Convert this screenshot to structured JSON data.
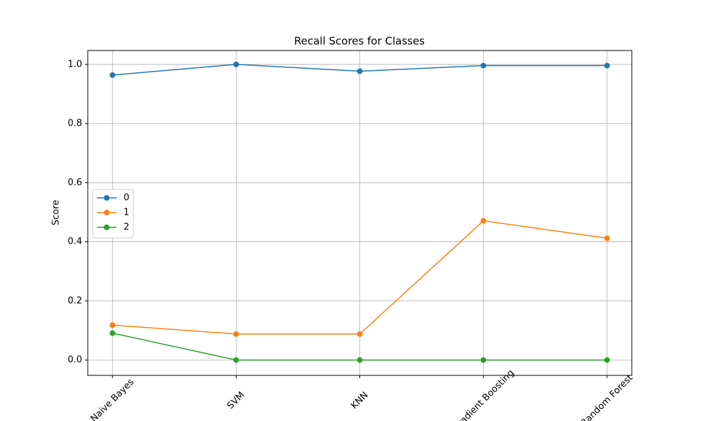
{
  "chart_data": {
    "type": "line",
    "title": "Recall Scores for Classes",
    "y_label": "Score",
    "categories": [
      "Naive Bayes",
      "SVM",
      "KNN",
      "Gradient Boosting",
      "Random Forest"
    ],
    "series": [
      {
        "name": "0",
        "color": "#1f77b4",
        "values": [
          0.964,
          1.0,
          0.977,
          0.996,
          0.996
        ]
      },
      {
        "name": "1",
        "color": "#ff7f0e",
        "values": [
          0.118,
          0.088,
          0.088,
          0.471,
          0.412
        ]
      },
      {
        "name": "2",
        "color": "#2ca02c",
        "values": [
          0.091,
          0,
          0,
          0,
          0
        ]
      }
    ],
    "ylim": [
      -0.052,
      1.047
    ],
    "yticks": [
      {
        "value": 0,
        "label": "0.0"
      },
      0.2,
      0.4,
      0.6,
      0.8,
      {
        "value": 1,
        "label": "1.0"
      }
    ],
    "grid": true,
    "legend": "center left"
  }
}
